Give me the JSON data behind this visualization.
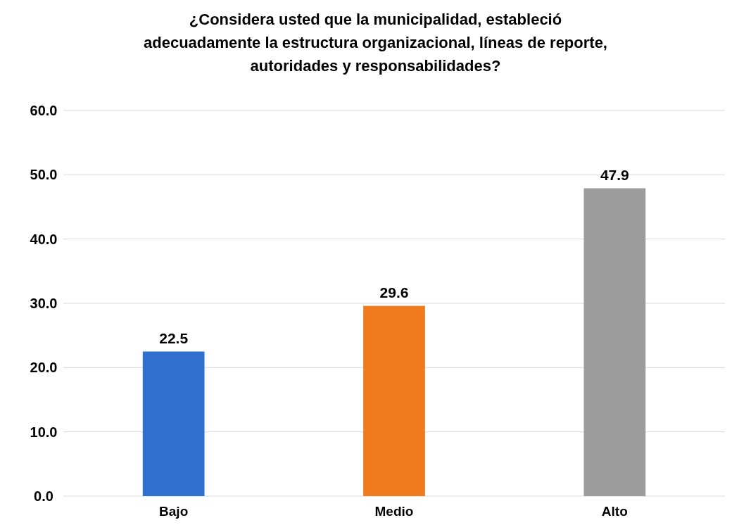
{
  "chart_data": {
    "type": "bar",
    "title": "¿Considera usted que la municipalidad, estableció\nadecuadamente la estructura organizacional, líneas de reporte,\nautoridades y responsabilidades?",
    "categories": [
      "Bajo",
      "Medio",
      "Alto"
    ],
    "values": [
      22.5,
      29.6,
      47.9
    ],
    "colors": [
      "#2e6fd0",
      "#f07a1e",
      "#9c9c9c"
    ],
    "ylim": [
      0,
      60
    ],
    "yticks": [
      {
        "value": 0,
        "label": "0.0"
      },
      {
        "value": 10,
        "label": "10.0"
      },
      {
        "value": 20,
        "label": "20.0"
      },
      {
        "value": 30,
        "label": "30.0"
      },
      {
        "value": 40,
        "label": "40.0"
      },
      {
        "value": 50,
        "label": "50.0"
      },
      {
        "value": 60,
        "label": "60.0"
      }
    ],
    "grid": "y",
    "data_labels": true
  }
}
